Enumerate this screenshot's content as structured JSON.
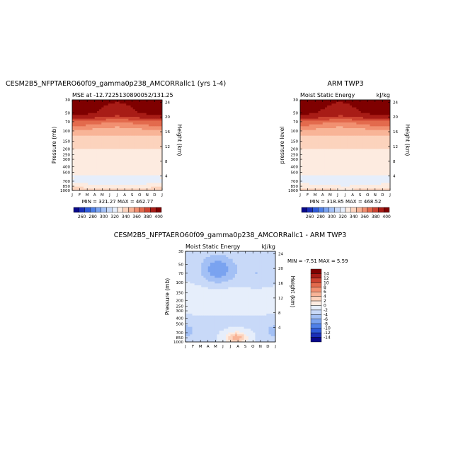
{
  "palette": [
    "#08088a",
    "#1a2fb8",
    "#2e5ad9",
    "#4f80e8",
    "#7aa3f0",
    "#a3c0f5",
    "#c8d9f8",
    "#e6eefb",
    "#fdebe0",
    "#fcd3bd",
    "#f8b497",
    "#f19071",
    "#e36a4d",
    "#cc4230",
    "#a81c16",
    "#7f0000"
  ],
  "months": [
    "J",
    "F",
    "M",
    "A",
    "M",
    "J",
    "J",
    "A",
    "S",
    "O",
    "N",
    "D",
    "J"
  ],
  "pressure_ticks": [
    "30",
    "50",
    "70",
    "100",
    "150",
    "200",
    "250",
    "300",
    "400",
    "500",
    "700",
    "850",
    "1000"
  ],
  "panels": [
    {
      "title": "CESM2B5_NFPTAERO60f09_gamma0p238_AMCORRallc1 (yrs 1-4)",
      "left_text": "MSE at -12.7225130890052/131.25",
      "right_text": "",
      "ylabel": "Pressure (mb)",
      "ylabel2": "Height (km)",
      "height_ticks": [
        "24",
        "20",
        "16",
        "12",
        "8",
        "4"
      ],
      "minmax": "MIN = 321.27   MAX = 462.77",
      "colorbar_labels": [
        "260",
        "280",
        "300",
        "320",
        "340",
        "360",
        "380",
        "400"
      ]
    },
    {
      "title": "ARM TWP3",
      "left_text": "Moist Static Energy",
      "right_text": "kJ/kg",
      "ylabel": "pressure level",
      "ylabel2": "Height (km)",
      "height_ticks": [
        "24",
        "20",
        "16",
        "12",
        "8",
        "4"
      ],
      "minmax": "MIN = 318.85   MAX = 468.52",
      "colorbar_labels": [
        "260",
        "280",
        "300",
        "320",
        "340",
        "360",
        "380",
        "400"
      ]
    },
    {
      "title": "CESM2B5_NFPTAERO60f09_gamma0p238_AMCORRallc1 - ARM TWP3",
      "left_text": "Moist Static Energy",
      "right_text": "kJ/kg",
      "ylabel": "Pressure (mb)",
      "ylabel2": "Height (km)",
      "height_ticks": [
        "24",
        "20",
        "16",
        "12",
        "8",
        "4"
      ],
      "minmax": "MIN =   -7.51   MAX =    5.59",
      "colorbar_labels": [
        "14",
        "12",
        "10",
        "8",
        "6",
        "4",
        "2",
        "0",
        "-2",
        "-4",
        "-6",
        "-8",
        "-10",
        "-12",
        "-14"
      ]
    }
  ],
  "chart_data": [
    {
      "type": "heatmap",
      "title": "CESM2B5_NFPTAERO60f09_gamma0p238_AMCORRallc1 (yrs 1-4)",
      "xlabel": "",
      "ylabel": "Pressure (mb)",
      "y2label": "Height (km)",
      "x": [
        "J",
        "F",
        "M",
        "A",
        "M",
        "J",
        "J",
        "A",
        "S",
        "O",
        "N",
        "D",
        "J"
      ],
      "y": [
        30,
        50,
        70,
        100,
        150,
        200,
        250,
        300,
        400,
        500,
        700,
        850,
        1000
      ],
      "units": "kJ/kg",
      "min": 321.27,
      "max": 462.77,
      "levels": [
        260,
        270,
        280,
        290,
        300,
        310,
        320,
        330,
        340,
        350,
        360,
        370,
        380,
        390,
        400
      ],
      "profile": [
        [
          30,
          405
        ],
        [
          50,
          400
        ],
        [
          60,
          390
        ],
        [
          70,
          375
        ],
        [
          85,
          365
        ],
        [
          100,
          355
        ],
        [
          150,
          345
        ],
        [
          200,
          340
        ],
        [
          300,
          338
        ],
        [
          400,
          335
        ],
        [
          500,
          333
        ],
        [
          600,
          328
        ],
        [
          700,
          326
        ],
        [
          800,
          330
        ],
        [
          850,
          335
        ],
        [
          950,
          342
        ],
        [
          1000,
          348
        ]
      ]
    },
    {
      "type": "heatmap",
      "title": "ARM TWP3",
      "xlabel": "",
      "ylabel": "pressure level",
      "y2label": "Height (km)",
      "x": [
        "J",
        "F",
        "M",
        "A",
        "M",
        "J",
        "J",
        "A",
        "S",
        "O",
        "N",
        "D",
        "J"
      ],
      "y": [
        30,
        50,
        70,
        100,
        150,
        200,
        250,
        300,
        400,
        500,
        700,
        850,
        1000
      ],
      "units": "kJ/kg",
      "min": 318.85,
      "max": 468.52,
      "levels": [
        260,
        270,
        280,
        290,
        300,
        310,
        320,
        330,
        340,
        350,
        360,
        370,
        380,
        390,
        400
      ],
      "profile": [
        [
          30,
          405
        ],
        [
          50,
          400
        ],
        [
          60,
          390
        ],
        [
          70,
          375
        ],
        [
          85,
          365
        ],
        [
          100,
          355
        ],
        [
          150,
          345
        ],
        [
          200,
          340
        ],
        [
          300,
          338
        ],
        [
          400,
          336
        ],
        [
          500,
          333
        ],
        [
          600,
          328
        ],
        [
          700,
          325
        ],
        [
          800,
          329
        ],
        [
          850,
          334
        ],
        [
          950,
          340
        ],
        [
          1000,
          347
        ]
      ]
    },
    {
      "type": "heatmap",
      "title": "CESM2B5_NFPTAERO60f09_gamma0p238_AMCORRallc1 - ARM TWP3",
      "xlabel": "",
      "ylabel": "Pressure (mb)",
      "y2label": "Height (km)",
      "x": [
        "J",
        "F",
        "M",
        "A",
        "M",
        "J",
        "J",
        "A",
        "S",
        "O",
        "N",
        "D",
        "J"
      ],
      "y": [
        30,
        50,
        70,
        100,
        150,
        200,
        250,
        300,
        400,
        500,
        700,
        850,
        1000
      ],
      "units": "kJ/kg",
      "min": -7.51,
      "max": 5.59,
      "levels": [
        -14,
        -12,
        -10,
        -8,
        -6,
        -4,
        -2,
        0,
        2,
        4,
        6,
        8,
        10,
        12,
        14
      ]
    }
  ]
}
